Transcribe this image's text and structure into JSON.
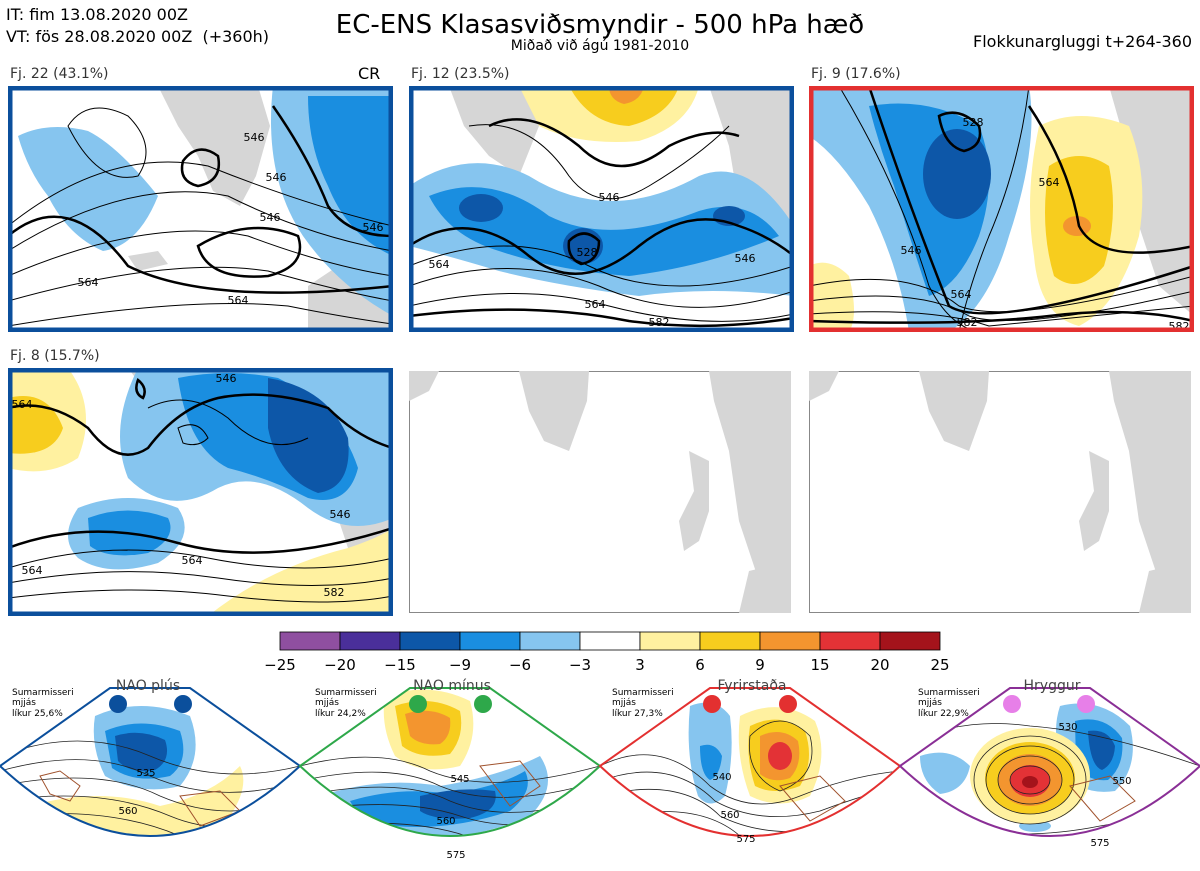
{
  "header": {
    "it_line": "IT: fim 13.08.2020 00Z",
    "vt_line": "VT: fös 28.08.2020 00Z  (+360h)",
    "title": "EC-ENS Klasasviðsmyndir - 500 hPa hæð",
    "subtitle": "Miðað við ágú 1981-2010",
    "window": "Flokkunargluggi t+264-360"
  },
  "panels": [
    {
      "label": "Fj. 22 (43.1%)",
      "tag": "CR",
      "border": "#0b4f9c",
      "contours": [
        "546",
        "546",
        "546",
        "564",
        "564",
        "546"
      ]
    },
    {
      "label": "Fj. 12 (23.5%)",
      "tag": "",
      "border": "#0b4f9c",
      "contours": [
        "546",
        "528",
        "564",
        "564",
        "546",
        "582"
      ]
    },
    {
      "label": "Fj. 9 (17.6%)",
      "tag": "",
      "border": "#e33030",
      "contours": [
        "528",
        "546",
        "564",
        "564",
        "582",
        "582"
      ]
    },
    {
      "label": "Fj. 8 (15.7%)",
      "tag": "",
      "border": "#0b4f9c",
      "contours": [
        "564",
        "546",
        "546",
        "564",
        "582",
        "564"
      ]
    }
  ],
  "colorbar": {
    "ticks": [
      "−25",
      "−20",
      "−15",
      "−9",
      "−6",
      "−3",
      "3",
      "6",
      "9",
      "15",
      "20",
      "25"
    ],
    "colors": [
      "#8f4fa0",
      "#4a2f9a",
      "#0d57a8",
      "#1a8ee0",
      "#86c5ef",
      "#ffffff",
      "#fff1a0",
      "#f7cd1e",
      "#f3952f",
      "#e33236",
      "#a4131b"
    ]
  },
  "regimes": [
    {
      "name": "NAO plús",
      "season": "Sumarmisseri",
      "mid": "mjjás",
      "prob": "líkur 25,6%",
      "border": "#0b4f9c",
      "dot": "#0b4f9c",
      "contours": [
        "535",
        "560"
      ]
    },
    {
      "name": "NAO mínus",
      "season": "Sumarmisseri",
      "mid": "mjjás",
      "prob": "líkur 24,2%",
      "border": "#2ea84a",
      "dot": "#2ea84a",
      "contours": [
        "545",
        "560",
        "575"
      ]
    },
    {
      "name": "Fyrirstaða",
      "season": "Sumarmisseri",
      "mid": "mjjás",
      "prob": "líkur 27,3%",
      "border": "#e33030",
      "dot": "#e33030",
      "contours": [
        "540",
        "560",
        "575"
      ]
    },
    {
      "name": "Hryggur",
      "season": "Sumarmisseri",
      "mid": "mjjás",
      "prob": "líkur 22,9%",
      "border": "#8a2f96",
      "dot": "#e77fe8",
      "contours": [
        "530",
        "550",
        "575"
      ]
    }
  ]
}
